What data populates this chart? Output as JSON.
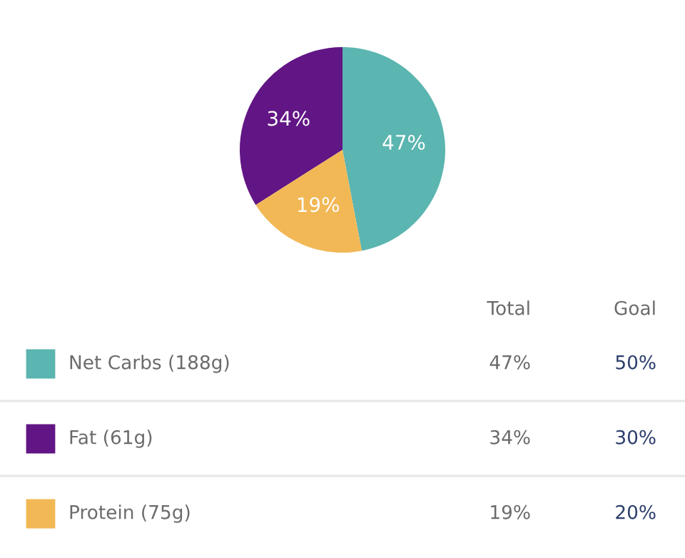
{
  "chart_data": {
    "type": "pie",
    "categories": [
      "Net Carbs (188g)",
      "Fat (61g)",
      "Protein (75g)"
    ],
    "values": [
      47,
      34,
      19
    ],
    "value_labels": [
      "47%",
      "34%",
      "19%"
    ],
    "colors": [
      "#5bb5b0",
      "#621685",
      "#f2b856"
    ],
    "legend": "bottom",
    "annotations": [
      "Total",
      "Goal",
      "47%",
      "50%",
      "34%",
      "30%",
      "19%",
      "20%"
    ]
  }
}
